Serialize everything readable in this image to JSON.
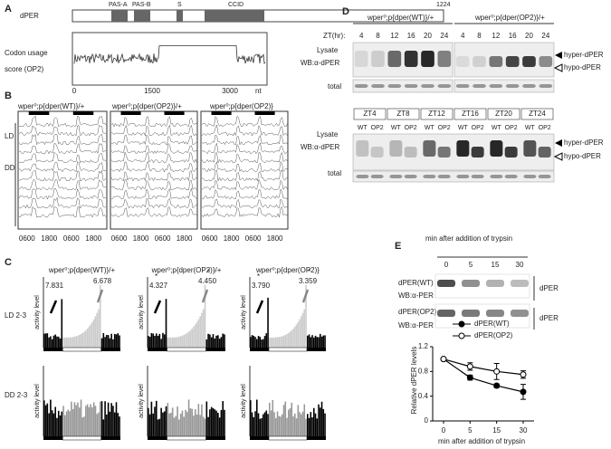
{
  "panel_a": {
    "label": "A",
    "protein": "dPER",
    "domains": [
      "PAS-A",
      "PAS-B",
      "S",
      "CCID"
    ],
    "length": "1224",
    "ylabel": [
      "Codon usage",
      "score (OP2)"
    ],
    "xticks": [
      "0",
      "1500",
      "3000"
    ],
    "xunit": "nt"
  },
  "panel_b": {
    "label": "B",
    "genotypes": [
      "wper⁰;p{dper(WT)}/+",
      "wper⁰;p{dper(OP2)}/+",
      "wper⁰;p{dper(OP2)}"
    ],
    "row_labels": [
      "LD",
      "DD"
    ],
    "xticks": [
      "0600",
      "1800",
      "0600",
      "1800"
    ]
  },
  "panel_c": {
    "label": "C",
    "genotypes": [
      "wper⁰;p{dper(WT)}/+",
      "wper⁰;p{dper(OP2)}/+",
      "wper⁰;p{dper(OP2)}"
    ],
    "row_labels": [
      "LD 2-3",
      "DD 2-3"
    ],
    "ylabel": "activity level",
    "star": "*",
    "annotations": [
      [
        "7.831",
        "6.678"
      ],
      [
        "4.327",
        "4.450"
      ],
      [
        "3.790",
        "3.359"
      ]
    ]
  },
  "panel_d": {
    "label": "D",
    "genotypes": [
      "wper⁰;p{dper(WT)}/+",
      "wper⁰;p{dper(OP2)}/+"
    ],
    "zt_label": "ZT(hr):",
    "times": [
      "4",
      "8",
      "12",
      "16",
      "20",
      "24"
    ],
    "lysate": "Lysate",
    "wb": "WB:α-dPER",
    "total": "total",
    "hyper": "hyper-dPER",
    "hypo": "hypo-dPER",
    "zt_groups": [
      "ZT4",
      "ZT8",
      "ZT12",
      "ZT16",
      "ZT20",
      "ZT24"
    ],
    "lanes": [
      "WT",
      "OP2"
    ]
  },
  "panel_e": {
    "label": "E",
    "blot_title": "min after addition of trypsin",
    "times": [
      "0",
      "5",
      "15",
      "30"
    ],
    "rows": [
      [
        "dPER(WT)",
        "WB:α-PER"
      ],
      [
        "dPER(OP2)",
        "WB:α-PER"
      ]
    ],
    "side_label": "dPER",
    "chart_data": {
      "type": "line",
      "categories": [
        "0",
        "5",
        "15",
        "30"
      ],
      "ylabel": "Relative dPER levels",
      "xlabel": "min after addition of trypsin",
      "ylim": [
        0,
        1.2
      ],
      "yticks": [
        0,
        0.4,
        0.8,
        1.2
      ],
      "series": [
        {
          "name": "dPER(WT)",
          "color": "#000000",
          "marker": "filled",
          "values": [
            1.0,
            0.7,
            0.57,
            0.47
          ],
          "errors": [
            0,
            0.04,
            0.03,
            0.12
          ]
        },
        {
          "name": "dPER(OP2)",
          "color": "#000000",
          "marker": "open",
          "values": [
            1.0,
            0.88,
            0.8,
            0.75
          ],
          "errors": [
            0,
            0.06,
            0.13,
            0.06
          ]
        }
      ]
    }
  }
}
